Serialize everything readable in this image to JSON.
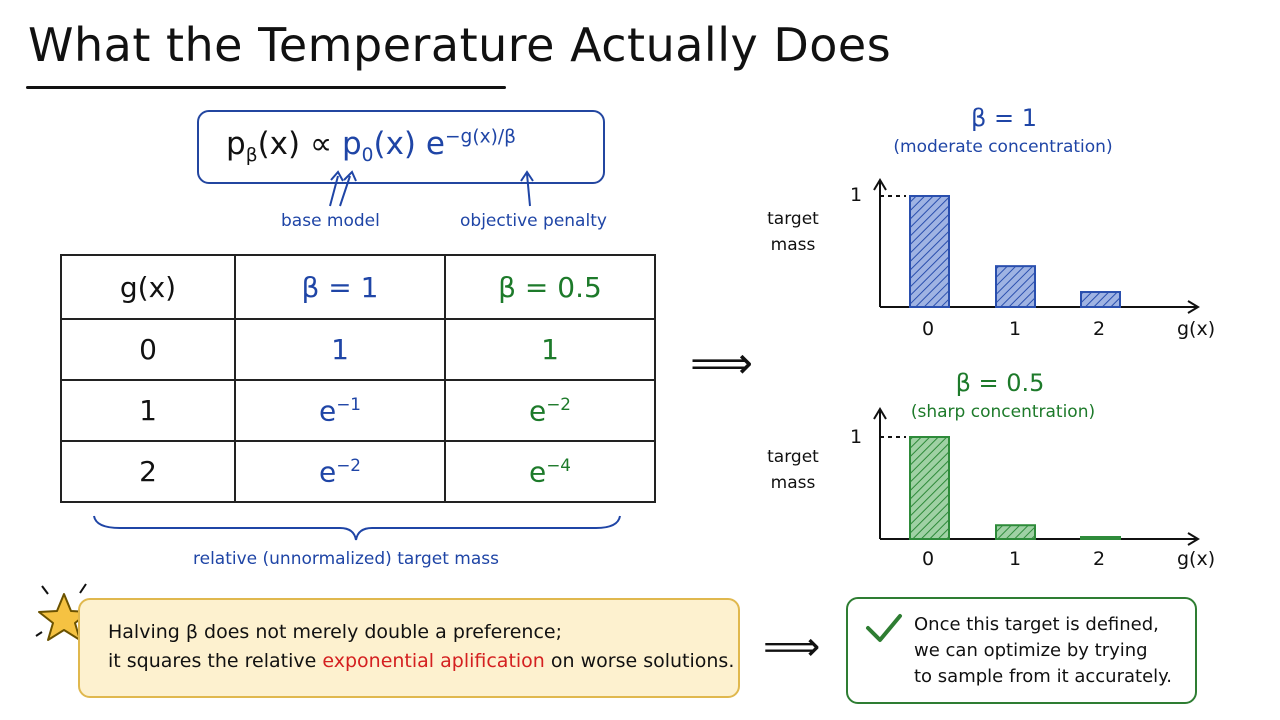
{
  "title": "What the Temperature Actually Does",
  "formula": {
    "p": "p",
    "beta_sub": "β",
    "x_lhs": "(x) ∝ ",
    "p0": "p",
    "zero_sub": "0",
    "x_rhs": "(x) e",
    "exp": "−g(x)/β"
  },
  "annotations": {
    "base": "base model",
    "penalty": "objective penalty"
  },
  "table": {
    "header": [
      "g(x)",
      "β = 1",
      "β = 0.5"
    ],
    "rows": [
      {
        "g": "0",
        "b1": "1",
        "b05": "1"
      },
      {
        "g": "1",
        "b1_base": "e",
        "b1_exp": "−1",
        "b05_base": "e",
        "b05_exp": "−2"
      },
      {
        "g": "2",
        "b1_base": "e",
        "b1_exp": "−2",
        "b05_base": "e",
        "b05_exp": "−4"
      }
    ],
    "caption": "relative (unnormalized) target mass"
  },
  "chart_data": [
    {
      "type": "bar",
      "title": "β = 1",
      "subtitle": "(moderate concentration)",
      "ylabel": "target mass",
      "xlabel": "g(x)",
      "categories": [
        "0",
        "1",
        "2"
      ],
      "values": [
        1,
        0.368,
        0.135
      ],
      "yticks": [
        "1"
      ],
      "color": "#2a4fae"
    },
    {
      "type": "bar",
      "title": "β = 0.5",
      "subtitle": "(sharp concentration)",
      "ylabel": "target mass",
      "xlabel": "g(x)",
      "categories": [
        "0",
        "1",
        "2"
      ],
      "values": [
        1,
        0.135,
        0.018
      ],
      "yticks": [
        "1"
      ],
      "color": "#2e8b3a"
    }
  ],
  "note": {
    "line1": "Halving β does not merely double a preference;",
    "line2_prefix": "it squares the relative ",
    "line2_highlight": "exponential aplification",
    "line2_suffix": " on worse solutions."
  },
  "conclusion": {
    "line1": "Once this target is defined,",
    "line2": "we can optimize by trying",
    "line3": "to sample from it accurately."
  },
  "arrows": {
    "right": "⟹"
  },
  "colors": {
    "blue": "#1f45a6",
    "green": "#1d7a2a",
    "red": "#d42020",
    "note_bg": "#fdf1cf",
    "note_border": "#e0b84e",
    "star": "#f5c242"
  }
}
